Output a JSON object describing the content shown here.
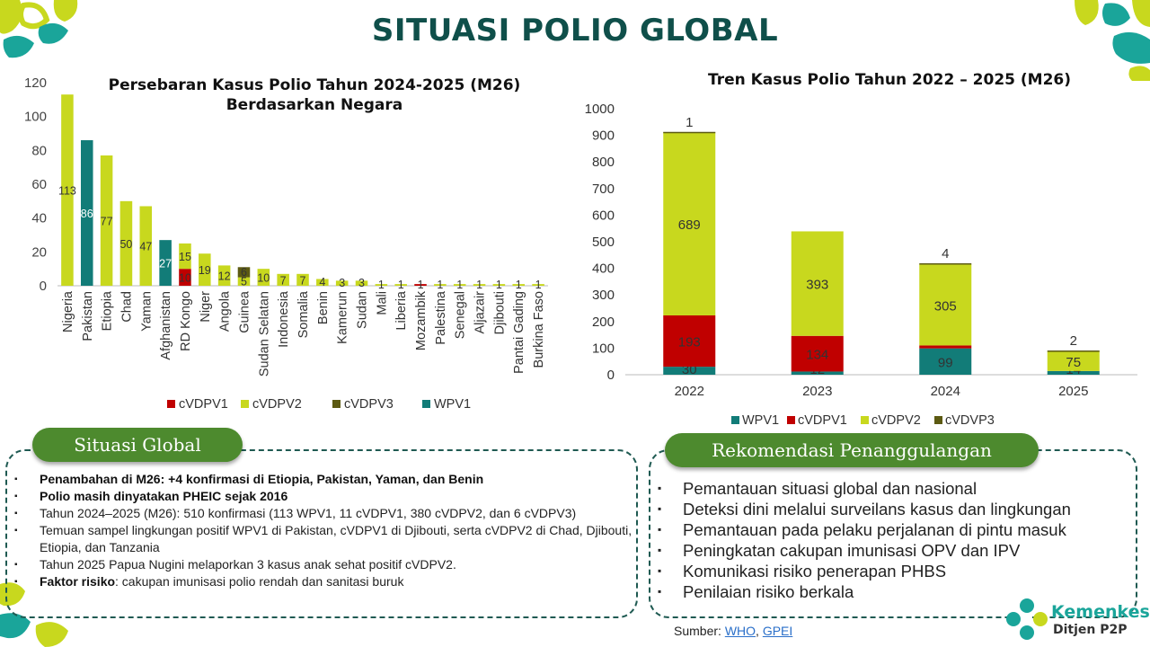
{
  "page": {
    "title": "SITUASI POLIO GLOBAL"
  },
  "colors": {
    "cVDPV1": "#c00000",
    "cVDPV2": "#c8d81e",
    "cVDPV3": "#5c5a12",
    "WPV1": "#127c78",
    "primary": "#0f4f4a",
    "pill": "#4d8a2e"
  },
  "chart_data": [
    {
      "type": "bar",
      "stacked": true,
      "title": "Persebaran Kasus Polio Tahun 2024-2025 (M26) Berdasarkan Negara",
      "title_lines": [
        "Persebaran Kasus Polio Tahun 2024-2025 (M26)",
        "Berdasarkan Negara"
      ],
      "categories": [
        "Nigeria",
        "Pakistan",
        "Etiopia",
        "Chad",
        "Yaman",
        "Afghanistan",
        "RD Kongo",
        "Niger",
        "Angola",
        "Guinea",
        "Sudan Selatan",
        "Indonesia",
        "Somalia",
        "Benin",
        "Kamerun",
        "Sudan",
        "Mali",
        "Liberia",
        "Mozambik",
        "Palestina",
        "Senegal",
        "Aljazair",
        "Djibouti",
        "Pantai Gading",
        "Burkina Faso"
      ],
      "series": [
        {
          "name": "cVDPV1",
          "values": [
            0,
            0,
            0,
            0,
            0,
            0,
            10,
            0,
            0,
            0,
            0,
            0,
            0,
            0,
            0,
            0,
            0,
            0,
            1,
            0,
            0,
            0,
            0,
            0,
            0
          ]
        },
        {
          "name": "cVDPV2",
          "values": [
            113,
            0,
            77,
            50,
            47,
            0,
            15,
            19,
            12,
            5,
            10,
            7,
            7,
            4,
            3,
            3,
            1,
            1,
            0,
            1,
            1,
            1,
            1,
            1,
            1
          ]
        },
        {
          "name": "cVDPV3",
          "values": [
            0,
            0,
            0,
            0,
            0,
            0,
            0,
            0,
            0,
            6,
            0,
            0,
            0,
            0,
            0,
            0,
            0,
            0,
            0,
            0,
            0,
            0,
            0,
            0,
            0
          ]
        },
        {
          "name": "WPV1",
          "values": [
            0,
            86,
            0,
            0,
            0,
            27,
            0,
            0,
            0,
            0,
            0,
            0,
            0,
            0,
            0,
            0,
            0,
            0,
            0,
            0,
            0,
            0,
            0,
            0,
            0
          ]
        }
      ],
      "legend_order": [
        "cVDPV1",
        "cVDPV2",
        "cVDPV3",
        "WPV1"
      ],
      "yticks": [
        0,
        20,
        40,
        60,
        80,
        100,
        120
      ],
      "ylim": [
        0,
        120
      ],
      "legend": "bottom",
      "grid": false
    },
    {
      "type": "bar",
      "stacked": true,
      "title": "Tren Kasus Polio Tahun 2022 – 2025 (M26)",
      "categories": [
        "2022",
        "2023",
        "2024",
        "2025"
      ],
      "series": [
        {
          "name": "WPV1",
          "values": [
            30,
            12,
            99,
            14
          ]
        },
        {
          "name": "cVDPV1",
          "values": [
            193,
            134,
            11,
            0
          ]
        },
        {
          "name": "cVDPV2",
          "values": [
            689,
            393,
            305,
            75
          ]
        },
        {
          "name": "cVDVP3",
          "values": [
            1,
            0,
            4,
            2
          ]
        }
      ],
      "yticks": [
        0,
        100,
        200,
        300,
        400,
        500,
        600,
        700,
        800,
        900,
        1000
      ],
      "ylim": [
        0,
        1000
      ],
      "legend": "bottom",
      "grid": false
    }
  ],
  "situasi": {
    "label": "Situasi Global",
    "bullet": "▪",
    "items": [
      {
        "text": "Penambahan di M26: +4 konfirmasi di Etiopia, Pakistan, Yaman, dan Benin",
        "bold": true
      },
      {
        "text": "Polio masih dinyatakan PHEIC sejak 2016",
        "bold": true
      },
      {
        "text": "Tahun 2024–2025 (M26): 510 konfirmasi (113 WPV1, 11 cVDPV1, 380 cVDPV2, dan 6 cVDPV3)",
        "bold": false
      },
      {
        "text": "Temuan sampel lingkungan positif WPV1 di Pakistan, cVDPV1 di Djibouti, serta cVDPV2 di Chad, Djibouti, Etiopia, dan Tanzania",
        "bold": false
      },
      {
        "text": "Tahun 2025 Papua Nugini melaporkan 3 kasus anak sehat positif cVDPV2.",
        "bold": false
      }
    ],
    "last": {
      "bold_part": "Faktor risiko",
      "rest": ": cakupan imunisasi polio rendah dan sanitasi buruk"
    }
  },
  "rekomendasi": {
    "label": "Rekomendasi Penanggulangan",
    "bullet": "▪",
    "items": [
      "Pemantauan situasi global dan nasional",
      "Deteksi dini melalui surveilans kasus dan lingkungan",
      "Pemantauan pada pelaku perjalanan di pintu masuk",
      "Peningkatan cakupan imunisasi OPV dan IPV",
      "Komunikasi risiko penerapan PHBS",
      "Penilaian risiko berkala"
    ]
  },
  "source": {
    "label": "Sumber: ",
    "links": [
      "WHO",
      "GPEI"
    ],
    "sep": ", "
  },
  "logo": {
    "name": "Kemenkes",
    "sub": "Ditjen P2P"
  }
}
